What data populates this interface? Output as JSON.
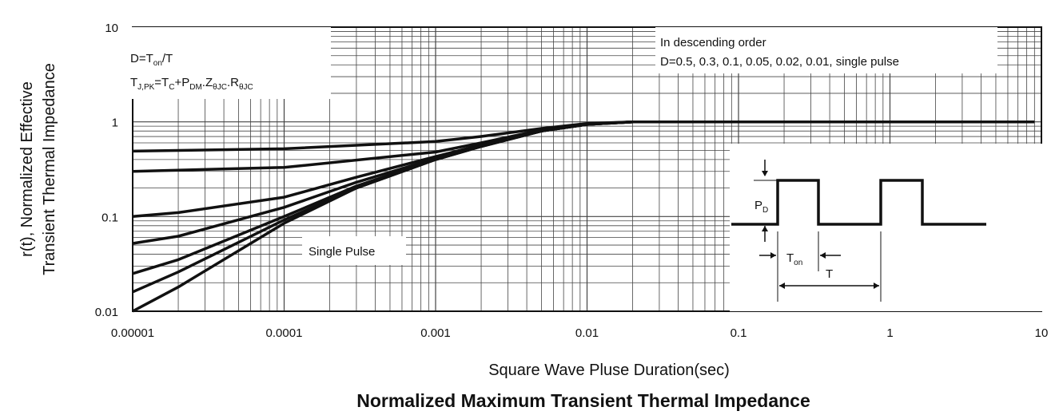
{
  "chart_data": {
    "type": "line",
    "title": "Normalized Maximum Transient Thermal Impedance",
    "xlabel": "Square Wave Pluse Duration(sec)",
    "ylabel_line1": "r(t), Normalized Effective",
    "ylabel_line2": "Transient Thermal Impedance",
    "x_scale": "log",
    "y_scale": "log",
    "xlim": [
      1e-05,
      10
    ],
    "ylim": [
      0.01,
      10
    ],
    "grid": true,
    "x_ticks": [
      {
        "value": 1e-05,
        "label": "0.00001"
      },
      {
        "value": 0.0001,
        "label": "0.0001"
      },
      {
        "value": 0.001,
        "label": "0.001"
      },
      {
        "value": 0.01,
        "label": "0.01"
      },
      {
        "value": 0.1,
        "label": "0.1"
      },
      {
        "value": 1,
        "label": "1"
      },
      {
        "value": 10,
        "label": "10"
      }
    ],
    "y_ticks": [
      {
        "value": 0.01,
        "label": "0.01"
      },
      {
        "value": 0.1,
        "label": "0.1"
      },
      {
        "value": 1,
        "label": "1"
      },
      {
        "value": 10,
        "label": "10"
      }
    ],
    "series": [
      {
        "id": "D=0.5",
        "x": [
          1e-05,
          0.0001,
          0.001,
          0.002,
          0.005,
          0.01,
          0.02,
          9
        ],
        "y": [
          0.49,
          0.52,
          0.62,
          0.7,
          0.85,
          0.96,
          1.0,
          1.0
        ]
      },
      {
        "id": "D=0.3",
        "x": [
          1e-05,
          0.0001,
          0.001,
          0.002,
          0.005,
          0.01,
          0.02,
          9
        ],
        "y": [
          0.3,
          0.33,
          0.48,
          0.6,
          0.82,
          0.95,
          1.0,
          1.0
        ]
      },
      {
        "id": "D=0.1",
        "x": [
          1e-05,
          2e-05,
          0.0001,
          0.0003,
          0.001,
          0.002,
          0.005,
          0.01,
          0.02,
          9
        ],
        "y": [
          0.1,
          0.11,
          0.16,
          0.26,
          0.43,
          0.57,
          0.8,
          0.94,
          1.0,
          1.0
        ]
      },
      {
        "id": "D=0.05",
        "x": [
          1e-05,
          2e-05,
          0.0001,
          0.0003,
          0.001,
          0.002,
          0.005,
          0.01,
          0.02,
          9
        ],
        "y": [
          0.052,
          0.062,
          0.125,
          0.23,
          0.41,
          0.56,
          0.8,
          0.94,
          1.0,
          1.0
        ]
      },
      {
        "id": "D=0.02",
        "x": [
          1e-05,
          2e-05,
          0.0001,
          0.0003,
          0.001,
          0.002,
          0.005,
          0.01,
          0.02,
          9
        ],
        "y": [
          0.025,
          0.035,
          0.1,
          0.21,
          0.4,
          0.55,
          0.8,
          0.94,
          1.0,
          1.0
        ]
      },
      {
        "id": "D=0.01",
        "x": [
          1e-05,
          2e-05,
          0.0001,
          0.0003,
          0.001,
          0.002,
          0.005,
          0.01,
          0.02,
          9
        ],
        "y": [
          0.016,
          0.026,
          0.092,
          0.2,
          0.4,
          0.55,
          0.8,
          0.94,
          1.0,
          1.0
        ]
      },
      {
        "id": "single pulse",
        "x": [
          1e-05,
          2e-05,
          0.0001,
          0.0003,
          0.001,
          0.002,
          0.005,
          0.01,
          0.02,
          9
        ],
        "y": [
          0.01,
          0.018,
          0.085,
          0.2,
          0.4,
          0.55,
          0.8,
          0.94,
          1.0,
          1.0
        ]
      }
    ],
    "annotations": {
      "duty": {
        "d_prefix": "D=T",
        "d_sub": "on",
        "d_suffix": "/T"
      },
      "tj": {
        "a": "T",
        "a_sub": "J,PK",
        "b": "=T",
        "b_sub": "C",
        "c": "+P",
        "c_sub": "DM",
        "d": ".Z",
        "d_sub": "θJC",
        "e": ".R",
        "e_sub": "θJC"
      },
      "order_line1": "In descending order",
      "order_line2": "D=0.5, 0.3, 0.1, 0.05, 0.02, 0.01, single pulse",
      "single_pulse": "Single Pulse",
      "inset": {
        "pd": "P",
        "pd_sub": "D",
        "ton": "T",
        "ton_sub": "on",
        "period": "T"
      }
    }
  }
}
